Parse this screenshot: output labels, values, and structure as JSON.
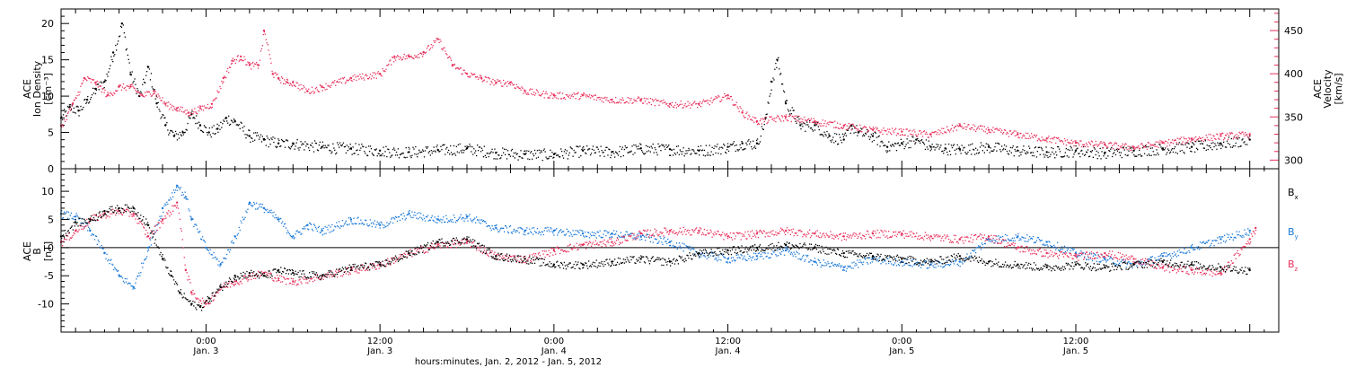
{
  "chart_data": [
    {
      "type": "scatter",
      "panel": "top",
      "ylabel_left": [
        "ACE",
        "Ion Density",
        "[cm⁻³]"
      ],
      "ylabel_right": [
        "ACE",
        "Velocity",
        "[km/s]"
      ],
      "x_unit": "hours since Jan. 2, 2012 00:00",
      "xlim": [
        14,
        98
      ],
      "ylim_left": [
        0,
        22
      ],
      "yticks_left": [
        0,
        5,
        10,
        15,
        20
      ],
      "ylim_right": [
        290,
        475
      ],
      "yticks_right": [
        300,
        350,
        400,
        450
      ],
      "colors": {
        "density": "#000000",
        "velocity": "#e8305c"
      },
      "series": [
        {
          "name": "",
          "axis": "left",
          "color": "#000000",
          "x": [
            14.0,
            14.6,
            15.2,
            15.8,
            16.4,
            17.0,
            17.6,
            18.2,
            18.8,
            19.4,
            20.0,
            20.6,
            21.2,
            21.8,
            22.4,
            23.0,
            23.6,
            24.2,
            24.8,
            25.4,
            26.0,
            27.0,
            28.0,
            29.0,
            30.0,
            32.0,
            34.0,
            36.0,
            38.0,
            40.0,
            42.0,
            44.0,
            46.0,
            48.0,
            50.0,
            52.0,
            54.0,
            56.0,
            58.0,
            60.0,
            61.0,
            62.0,
            62.6,
            63.0,
            63.4,
            64.0,
            65.0,
            66.0,
            67.0,
            68.0,
            68.5,
            69.0,
            70.0,
            71.0,
            72.0,
            73.0,
            74.0,
            75.0,
            76.0,
            78.0,
            80.0,
            82.0,
            84.0,
            86.0,
            88.0,
            90.0,
            92.0,
            94.0,
            96.0
          ],
          "y": [
            7.0,
            8.5,
            8.0,
            9.5,
            11.0,
            12.0,
            16.0,
            20.0,
            13.0,
            10.0,
            14.0,
            9.0,
            6.0,
            4.5,
            5.0,
            7.5,
            6.0,
            5.0,
            5.5,
            7.0,
            6.5,
            4.5,
            4.0,
            3.5,
            3.5,
            3.0,
            2.8,
            2.5,
            2.3,
            2.6,
            2.8,
            2.2,
            2.0,
            2.0,
            2.5,
            2.3,
            2.8,
            2.7,
            2.5,
            3.0,
            3.5,
            3.5,
            7.0,
            12.0,
            15.0,
            9.0,
            6.0,
            6.0,
            4.5,
            4.0,
            6.0,
            5.0,
            4.5,
            3.0,
            3.5,
            4.0,
            3.0,
            2.8,
            2.7,
            3.0,
            2.5,
            2.3,
            2.5,
            2.2,
            2.5,
            2.8,
            3.0,
            3.5,
            4.0
          ]
        },
        {
          "name": "",
          "axis": "right",
          "color": "#e8305c",
          "x": [
            14.0,
            14.8,
            15.6,
            16.4,
            17.2,
            18.0,
            18.8,
            19.6,
            20.4,
            21.2,
            22.0,
            22.8,
            23.6,
            24.4,
            25.2,
            25.8,
            26.4,
            27.0,
            27.6,
            28.0,
            28.6,
            29.0,
            29.6,
            30.0,
            31.0,
            32.0,
            34.0,
            36.0,
            37.0,
            38.0,
            39.0,
            40.0,
            41.0,
            42.0,
            43.0,
            44.0,
            45.0,
            46.0,
            48.0,
            50.0,
            52.0,
            54.0,
            56.0,
            58.0,
            60.0,
            61.0,
            62.0,
            64.0,
            66.0,
            68.0,
            70.0,
            72.0,
            74.0,
            76.0,
            78.0,
            80.0,
            82.0,
            84.0,
            86.0,
            88.0,
            90.0,
            92.0,
            94.0,
            96.0
          ],
          "y": [
            340,
            365,
            395,
            390,
            375,
            385,
            385,
            375,
            380,
            365,
            360,
            355,
            360,
            365,
            395,
            415,
            420,
            410,
            410,
            450,
            400,
            395,
            390,
            390,
            380,
            385,
            395,
            400,
            420,
            420,
            425,
            440,
            410,
            400,
            395,
            390,
            390,
            380,
            375,
            375,
            370,
            370,
            365,
            365,
            375,
            355,
            345,
            350,
            345,
            340,
            335,
            333,
            330,
            340,
            335,
            330,
            325,
            320,
            318,
            315,
            320,
            325,
            328,
            330
          ]
        }
      ]
    },
    {
      "type": "scatter",
      "panel": "bottom",
      "ylabel_left": [
        "ACE",
        "B",
        "[nT]"
      ],
      "x_unit": "hours since Jan. 2, 2012 00:00",
      "xlim": [
        14,
        98
      ],
      "ylim": [
        -15,
        14
      ],
      "yticks": [
        -10,
        -5,
        0,
        5,
        10
      ],
      "zero_line": true,
      "legend_position": "right",
      "series": [
        {
          "name": "Bx",
          "label_main": "B",
          "label_sub": "x",
          "color": "#000000",
          "x": [
            14.0,
            15.0,
            16.0,
            17.0,
            18.0,
            19.0,
            20.0,
            21.0,
            21.6,
            22.2,
            23.0,
            23.6,
            24.2,
            25.0,
            26.0,
            27.0,
            28.0,
            29.0,
            30.0,
            32.0,
            34.0,
            36.0,
            38.0,
            40.0,
            42.0,
            44.0,
            46.0,
            48.0,
            50.0,
            52.0,
            54.0,
            56.0,
            58.0,
            60.0,
            62.0,
            64.0,
            66.0,
            68.0,
            70.0,
            72.0,
            74.0,
            76.0,
            78.0,
            80.0,
            82.0,
            84.0,
            86.0,
            88.0,
            90.0,
            92.0,
            94.0,
            96.0
          ],
          "y": [
            2.0,
            4.5,
            5.0,
            6.5,
            7.0,
            7.0,
            4.0,
            -2.0,
            -5.0,
            -8.0,
            -10.0,
            -10.5,
            -9.0,
            -7.0,
            -5.0,
            -4.5,
            -5.0,
            -4.0,
            -4.5,
            -5.0,
            -3.5,
            -3.0,
            -1.0,
            1.0,
            1.5,
            -1.5,
            -2.0,
            -3.0,
            -3.0,
            -2.5,
            -2.0,
            -2.5,
            -1.0,
            -0.5,
            0.0,
            0.5,
            0.0,
            -1.0,
            -1.5,
            -2.0,
            -2.5,
            -1.5,
            -2.5,
            -3.0,
            -3.5,
            -3.0,
            -3.5,
            -3.0,
            -2.5,
            -3.0,
            -3.5,
            -4.0
          ]
        },
        {
          "name": "By",
          "label_main": "B",
          "label_sub": "y",
          "color": "#1a78d8",
          "x": [
            14.0,
            15.0,
            16.0,
            17.0,
            18.0,
            19.0,
            20.0,
            21.0,
            22.0,
            22.6,
            23.0,
            24.0,
            25.0,
            26.0,
            27.0,
            28.0,
            29.0,
            30.0,
            31.0,
            32.0,
            34.0,
            36.0,
            38.0,
            40.0,
            42.0,
            44.0,
            46.0,
            48.0,
            50.0,
            52.0,
            54.0,
            56.0,
            58.0,
            60.0,
            62.0,
            64.0,
            66.0,
            68.0,
            70.0,
            72.0,
            74.0,
            76.0,
            78.0,
            80.0,
            82.0,
            84.0,
            86.0,
            88.0,
            90.0,
            92.0,
            94.0,
            96.0
          ],
          "y": [
            6.0,
            5.5,
            3.0,
            -1.0,
            -5.0,
            -7.0,
            0.0,
            7.0,
            11.0,
            9.0,
            5.0,
            0.0,
            -3.0,
            2.0,
            8.0,
            7.0,
            5.0,
            2.0,
            4.0,
            3.0,
            5.0,
            4.0,
            6.0,
            5.0,
            5.5,
            3.5,
            3.0,
            3.0,
            2.5,
            2.5,
            2.0,
            1.0,
            -1.0,
            -2.0,
            -1.5,
            -0.5,
            -2.5,
            -3.5,
            -2.0,
            -2.5,
            -3.0,
            -2.5,
            1.5,
            2.0,
            1.0,
            -1.0,
            -2.0,
            -3.0,
            -1.5,
            0.0,
            1.5,
            3.0
          ]
        },
        {
          "name": "Bz",
          "label_main": "B",
          "label_sub": "z",
          "color": "#e8305c",
          "x": [
            14.0,
            15.0,
            16.0,
            17.0,
            18.0,
            19.0,
            20.0,
            21.0,
            22.0,
            22.6,
            23.0,
            24.0,
            25.0,
            26.0,
            27.0,
            28.0,
            29.0,
            30.0,
            32.0,
            34.0,
            36.0,
            38.0,
            40.0,
            42.0,
            44.0,
            46.0,
            48.0,
            50.0,
            52.0,
            54.0,
            56.0,
            58.0,
            60.0,
            62.0,
            64.0,
            66.0,
            68.0,
            70.0,
            72.0,
            74.0,
            76.0,
            78.0,
            80.0,
            82.0,
            84.0,
            86.0,
            88.0,
            90.0,
            92.0,
            94.0,
            96.0,
            96.4
          ],
          "y": [
            1.0,
            3.0,
            5.0,
            6.0,
            6.5,
            6.0,
            2.0,
            5.0,
            8.0,
            -4.0,
            -8.0,
            -10.0,
            -7.0,
            -6.0,
            -5.0,
            -4.5,
            -5.5,
            -6.0,
            -5.0,
            -4.0,
            -3.0,
            -1.0,
            0.5,
            1.0,
            -1.5,
            -2.0,
            -0.5,
            0.5,
            1.0,
            2.5,
            3.0,
            3.0,
            2.0,
            2.5,
            3.0,
            2.5,
            2.0,
            2.5,
            2.5,
            2.0,
            1.5,
            2.0,
            0.0,
            -1.0,
            -1.5,
            -1.0,
            -2.0,
            -3.5,
            -4.0,
            -4.5,
            1.5,
            3.5
          ]
        }
      ]
    }
  ],
  "x_axis": {
    "ticks": [
      {
        "hours": 24,
        "time": "0:00",
        "date": "Jan. 3"
      },
      {
        "hours": 36,
        "time": "12:00",
        "date": "Jan. 3"
      },
      {
        "hours": 48,
        "time": "0:00",
        "date": "Jan. 4"
      },
      {
        "hours": 60,
        "time": "12:00",
        "date": "Jan. 4"
      },
      {
        "hours": 72,
        "time": "0:00",
        "date": "Jan. 5"
      },
      {
        "hours": 84,
        "time": "12:00",
        "date": "Jan. 5"
      }
    ],
    "title": "hours:minutes, Jan.  2, 2012 - Jan.  5, 2012"
  }
}
